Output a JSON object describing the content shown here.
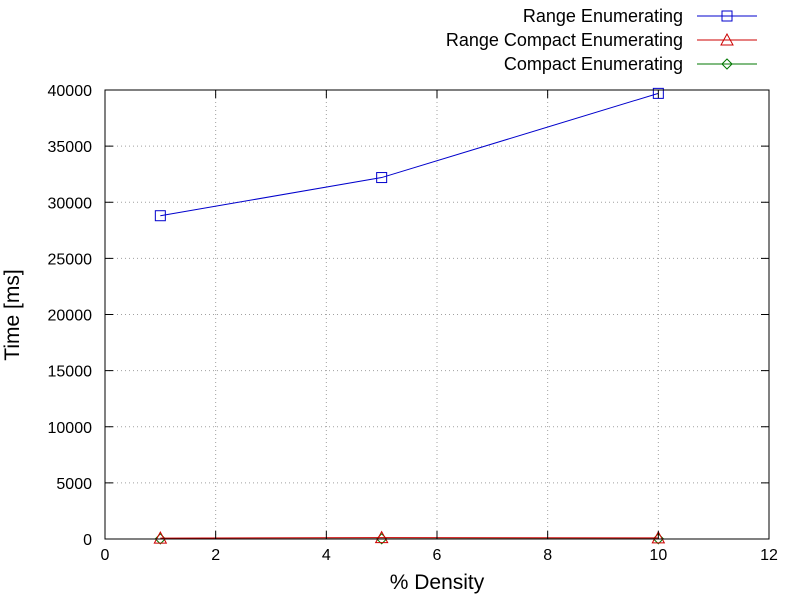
{
  "chart_data": {
    "type": "line",
    "title": "",
    "xlabel": "% Density",
    "ylabel": "Time [ms]",
    "xlim": [
      0,
      12
    ],
    "ylim": [
      0,
      40000
    ],
    "xticks": [
      0,
      2,
      4,
      6,
      8,
      10,
      12
    ],
    "yticks": [
      0,
      5000,
      10000,
      15000,
      20000,
      25000,
      30000,
      35000,
      40000
    ],
    "grid": true,
    "legend_position": "top-right",
    "series": [
      {
        "name": "Range Enumerating",
        "color": "#0000cc",
        "marker": "square",
        "x": [
          1,
          5,
          10
        ],
        "y": [
          28800,
          32200,
          39700
        ]
      },
      {
        "name": "Range Compact Enumerating",
        "color": "#cc0000",
        "marker": "triangle",
        "x": [
          1,
          5,
          10
        ],
        "y": [
          80,
          120,
          100
        ]
      },
      {
        "name": "Compact Enumerating",
        "color": "#007700",
        "marker": "diamond",
        "x": [
          1,
          5,
          10
        ],
        "y": [
          10,
          15,
          20
        ]
      }
    ]
  }
}
